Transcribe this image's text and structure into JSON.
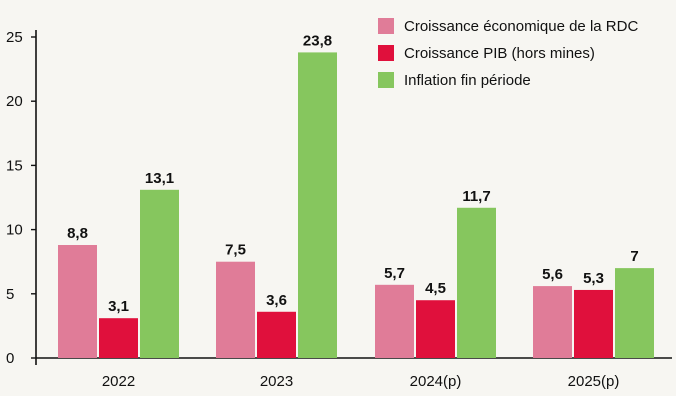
{
  "chart_data": {
    "type": "bar",
    "title": "",
    "xlabel": "",
    "ylabel": "",
    "categories": [
      "2022",
      "2023",
      "2024(p)",
      "2025(p)"
    ],
    "series": [
      {
        "name": "Croissance économique de la RDC",
        "color": "#e07c98",
        "values": [
          8.8,
          7.5,
          5.7,
          5.6
        ],
        "labels": [
          "8,8",
          "7,5",
          "5,7",
          "5,6"
        ]
      },
      {
        "name": "Croissance PIB (hors mines)",
        "color": "#e0103c",
        "values": [
          3.1,
          3.6,
          4.5,
          5.3
        ],
        "labels": [
          "3,1",
          "3,6",
          "4,5",
          "5,3"
        ]
      },
      {
        "name": "Inflation fin période",
        "color": "#86c65e",
        "values": [
          13.1,
          23.8,
          11.7,
          7.0
        ],
        "labels": [
          "13,1",
          "23,8",
          "11,7",
          "7"
        ]
      }
    ],
    "ylim": [
      0,
      25
    ],
    "yticks": [
      0,
      5,
      10,
      15,
      20,
      25
    ],
    "grid": false,
    "legend_position": "top-right"
  }
}
